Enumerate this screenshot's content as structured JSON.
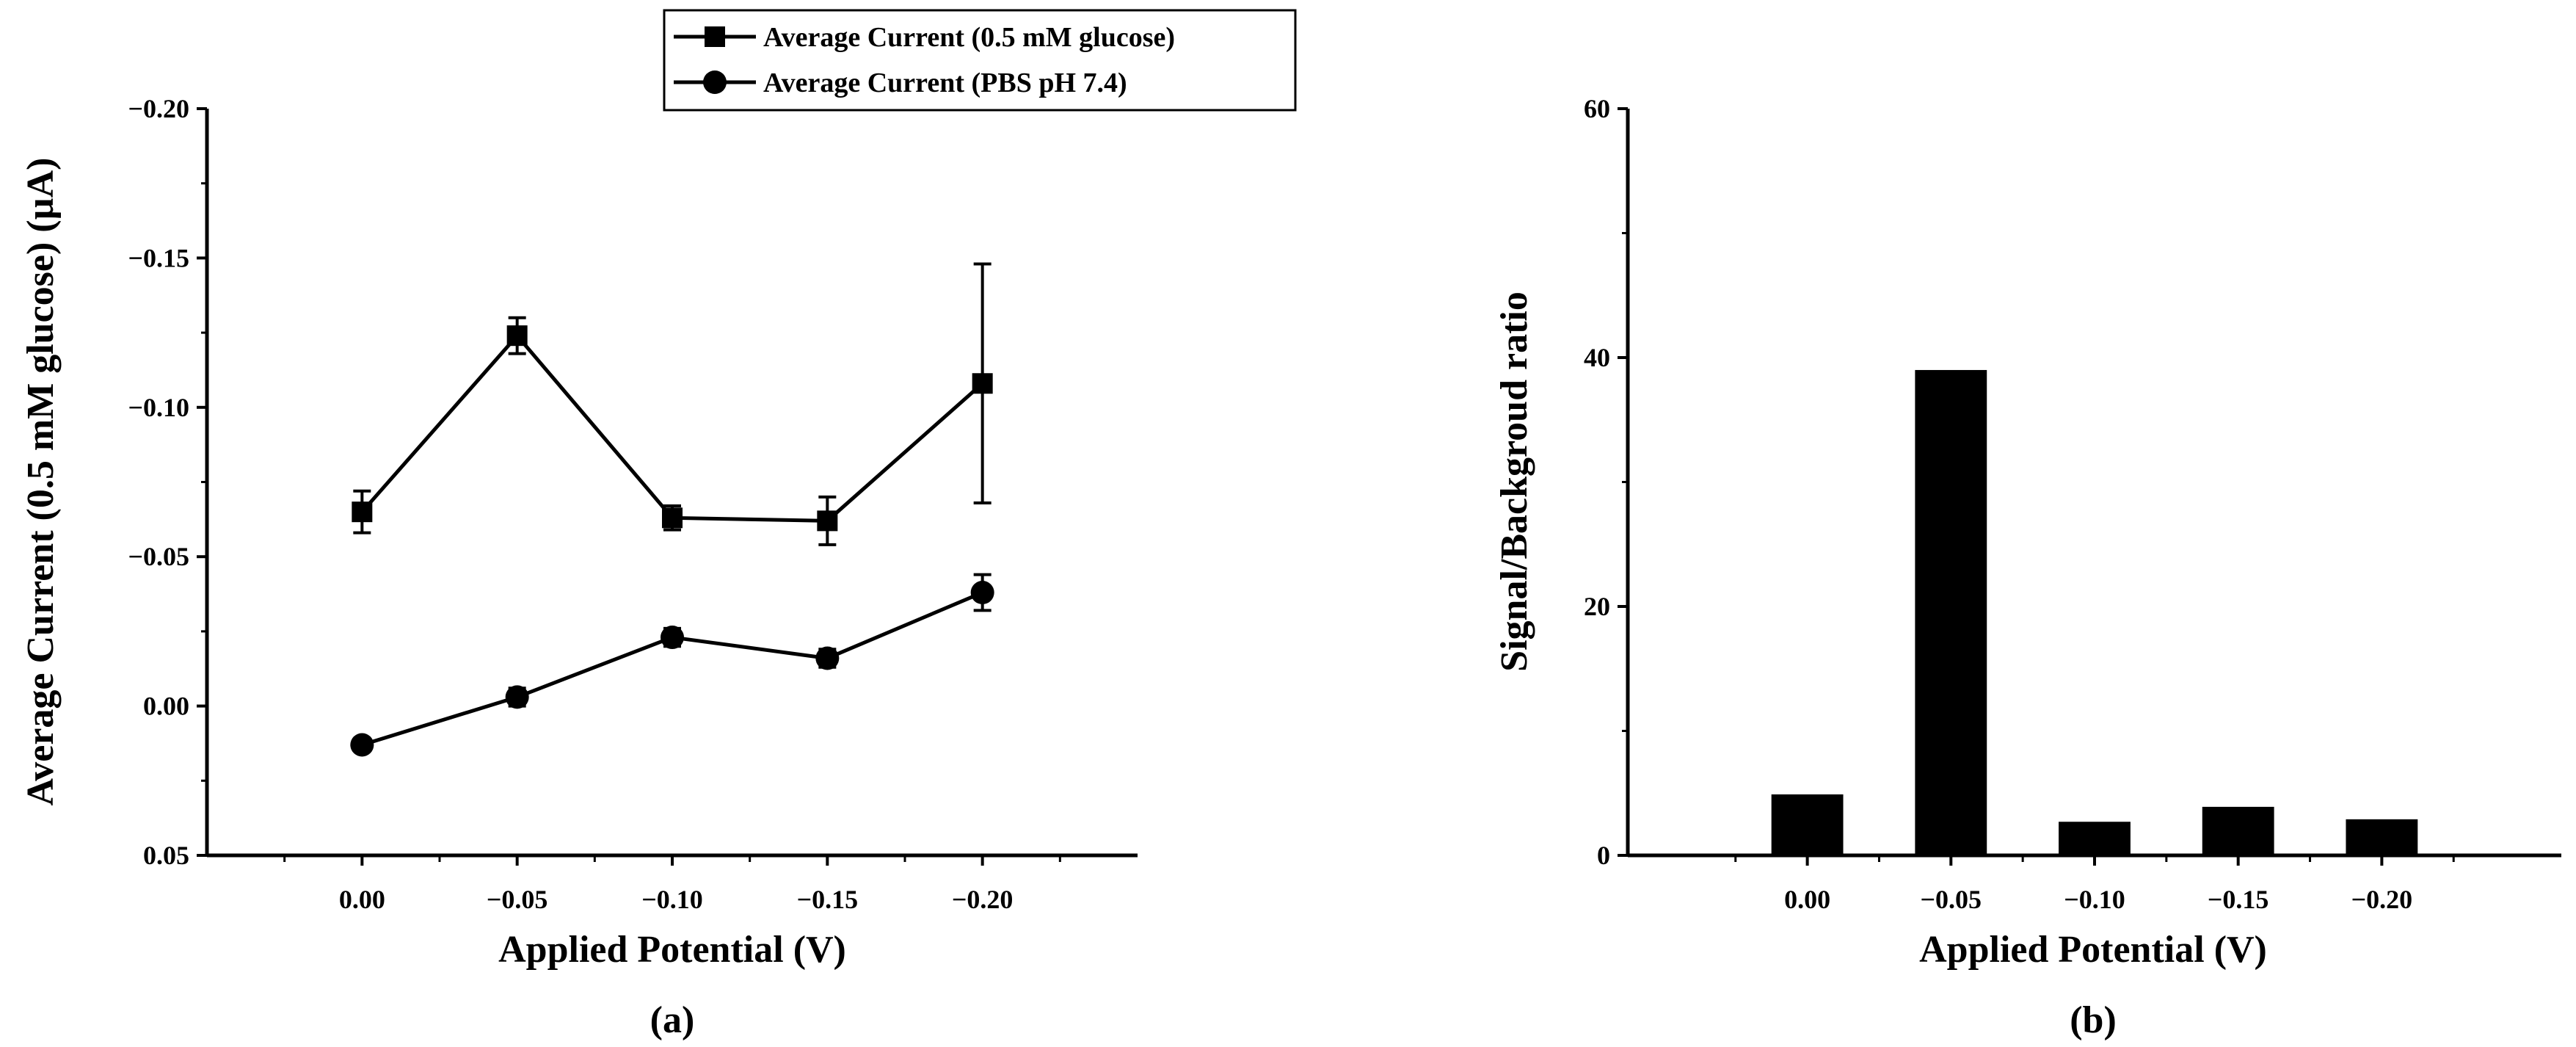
{
  "chart_data": [
    {
      "panel": "a",
      "type": "line",
      "panel_label": "(a)",
      "xlabel": "Applied Potential (V)",
      "ylabel": "Average Current (0.5 mM glucose) (µA)",
      "x_categories": [
        "0.00",
        "−0.05",
        "−0.10",
        "−0.15",
        "−0.20"
      ],
      "x_values": [
        0.0,
        -0.05,
        -0.1,
        -0.15,
        -0.2
      ],
      "xlim": [
        0.05,
        -0.25
      ],
      "ylim": [
        0.05,
        -0.2
      ],
      "y_ticks": [
        0.05,
        0.0,
        -0.05,
        -0.1,
        -0.15,
        -0.2
      ],
      "y_tick_labels": [
        "0.05",
        "0.00",
        "−0.05",
        "−0.10",
        "−0.15",
        "−0.20"
      ],
      "series": [
        {
          "name": "Average Current (0.5 mM glucose)",
          "marker": "square",
          "values": [
            -0.065,
            -0.124,
            -0.063,
            -0.062,
            -0.108
          ],
          "errors": [
            0.007,
            0.006,
            0.004,
            0.008,
            0.04
          ]
        },
        {
          "name": "Average Current (PBS pH 7.4)",
          "marker": "circle",
          "values": [
            0.013,
            -0.003,
            -0.023,
            -0.016,
            -0.038
          ],
          "errors": [
            0.002,
            0.003,
            0.003,
            0.003,
            0.006
          ]
        }
      ],
      "legend_position": "top-center"
    },
    {
      "panel": "b",
      "type": "bar",
      "panel_label": "(b)",
      "xlabel": "Applied Potential (V)",
      "ylabel": "Signal/Backgroud ratio",
      "categories": [
        "0.00",
        "−0.05",
        "−0.10",
        "−0.15",
        "−0.20"
      ],
      "values": [
        4.9,
        39.0,
        2.7,
        3.9,
        2.9
      ],
      "ylim": [
        0,
        60
      ],
      "y_ticks": [
        0,
        20,
        40,
        60
      ],
      "y_tick_labels": [
        "0",
        "20",
        "40",
        "60"
      ]
    }
  ]
}
